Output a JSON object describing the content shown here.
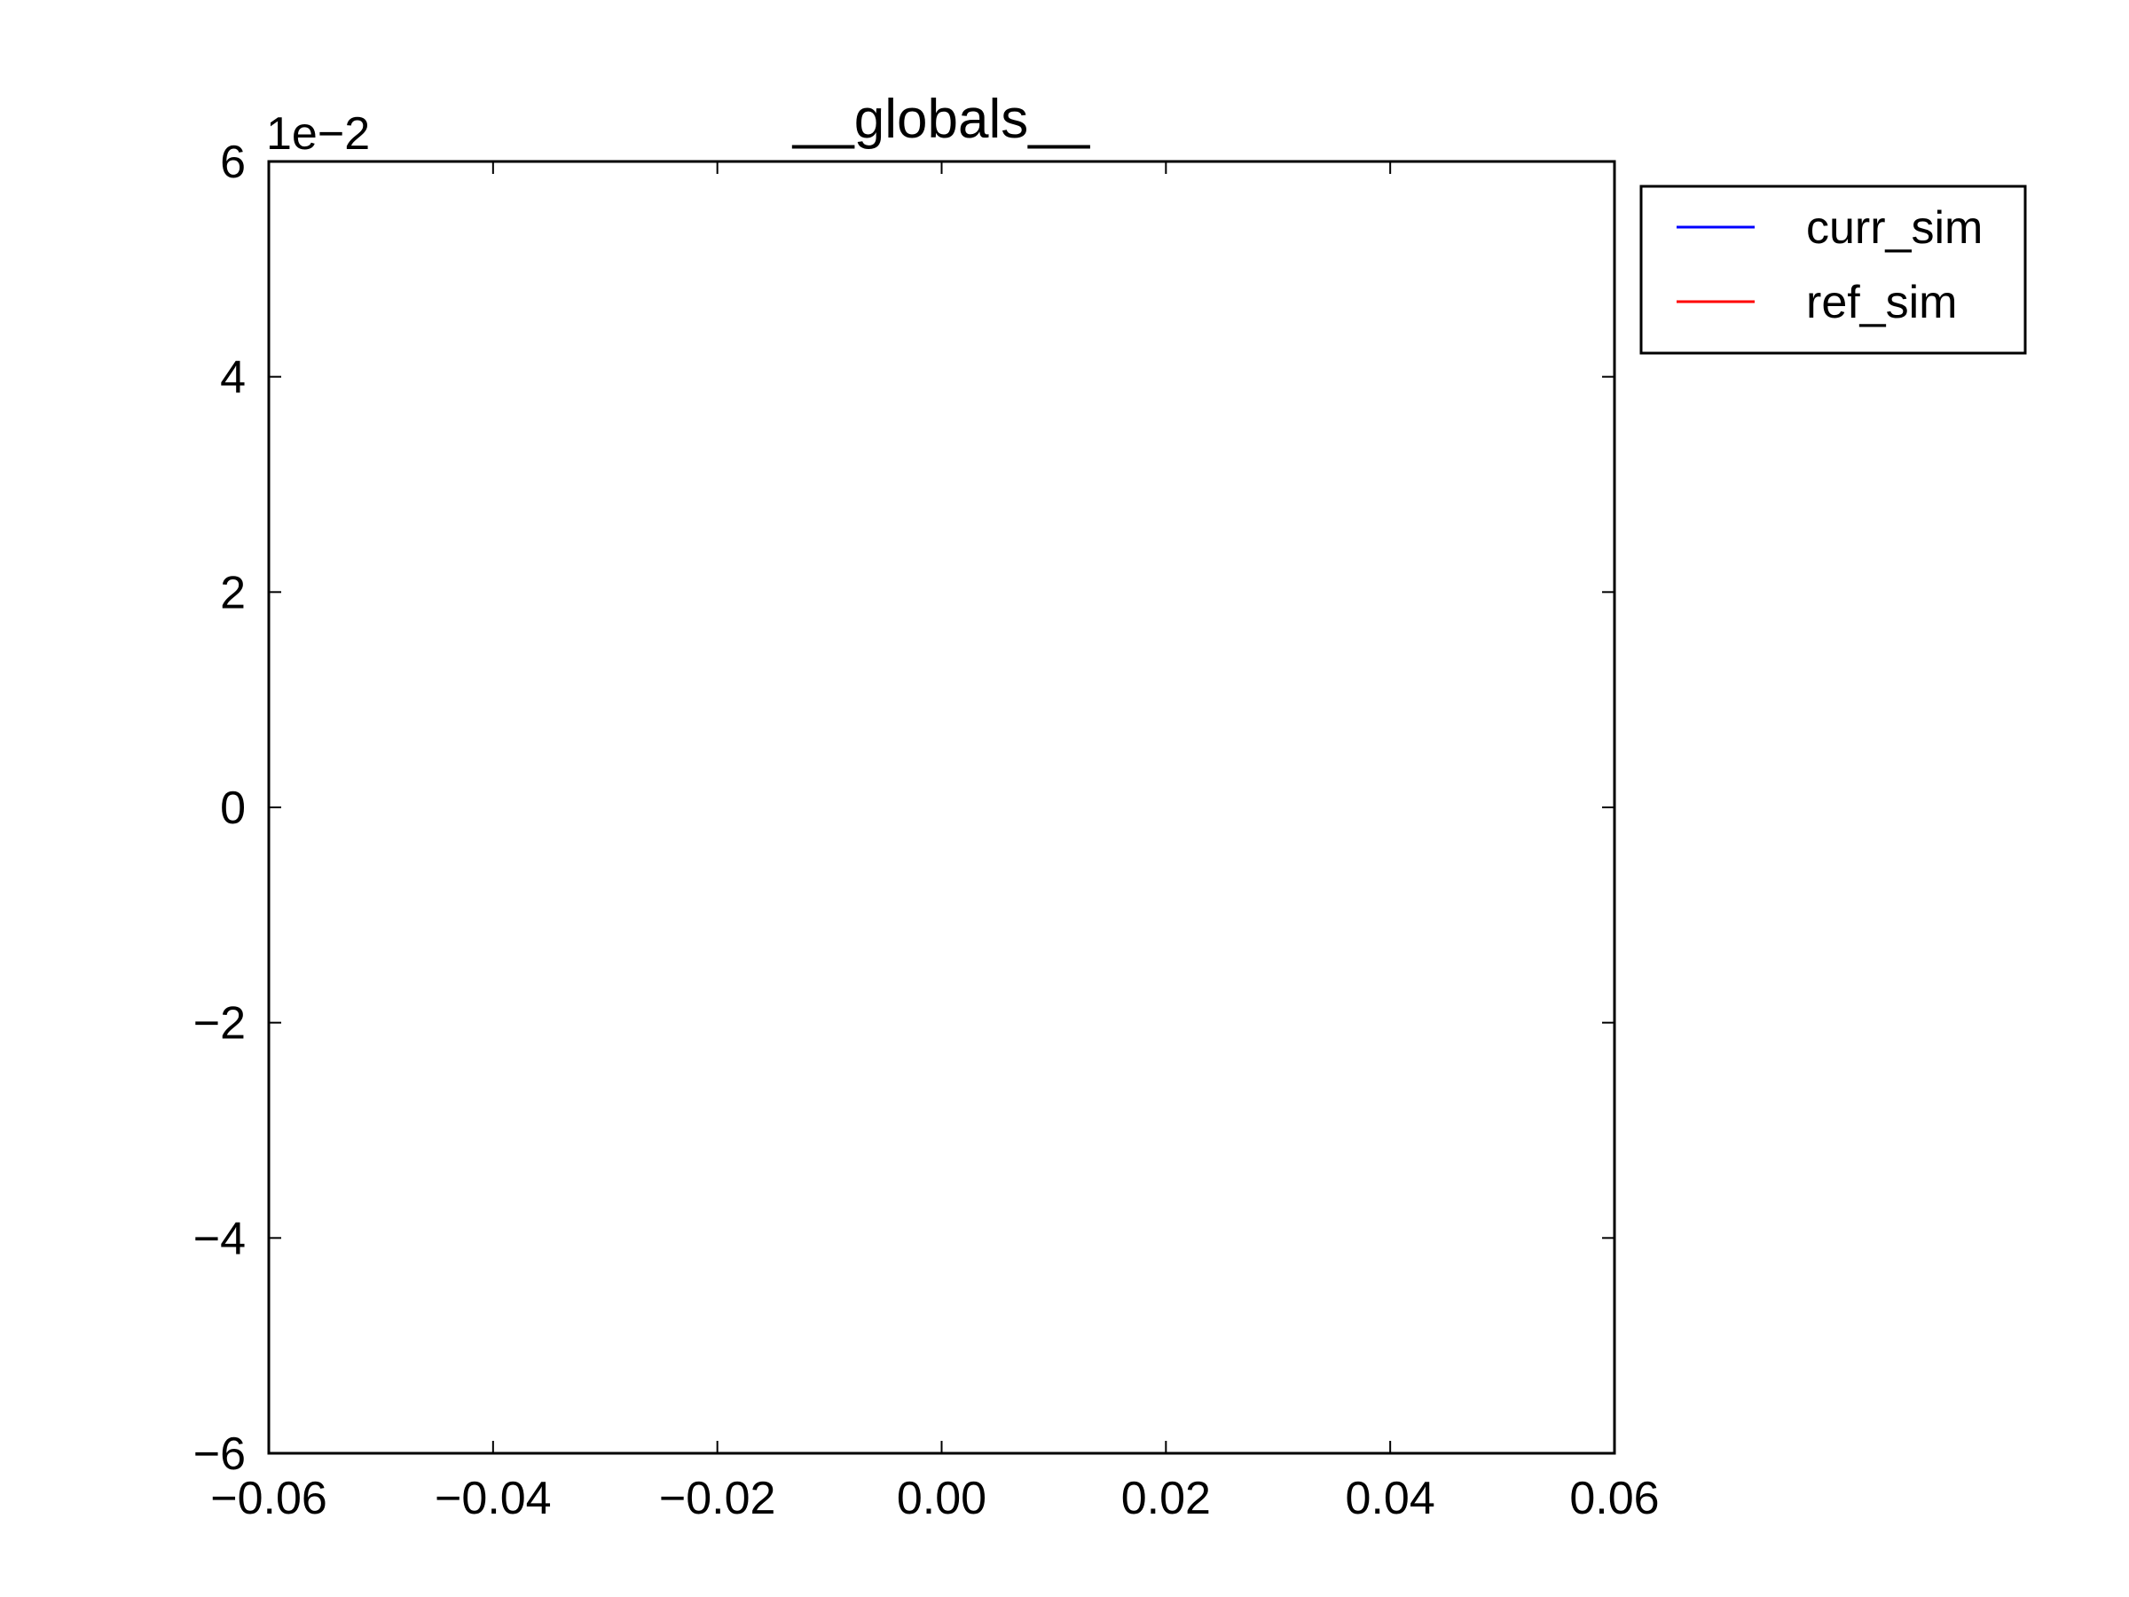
{
  "chart_data": {
    "type": "line",
    "title": "__globals__",
    "xlabel": "",
    "ylabel": "",
    "xlim": [
      -0.06,
      0.06
    ],
    "ylim": [
      -0.06,
      0.06
    ],
    "x_ticks": [
      -0.06,
      -0.04,
      -0.02,
      0.0,
      0.02,
      0.04,
      0.06
    ],
    "x_tick_labels": [
      "−0.06",
      "−0.04",
      "−0.02",
      "0.00",
      "0.02",
      "0.04",
      "0.06"
    ],
    "y_ticks": [
      0.06,
      0.04,
      0.02,
      0.0,
      -0.02,
      -0.04,
      -0.06
    ],
    "y_tick_labels": [
      "6",
      "4",
      "2",
      "0",
      "−2",
      "−4",
      "−6"
    ],
    "y_offset_label": "1e−2",
    "grid": false,
    "legend_position": "outside-top-right",
    "series": [
      {
        "name": "curr_sim",
        "color": "#0000ff",
        "x": [],
        "y": []
      },
      {
        "name": "ref_sim",
        "color": "#ff0000",
        "x": [],
        "y": []
      }
    ]
  }
}
